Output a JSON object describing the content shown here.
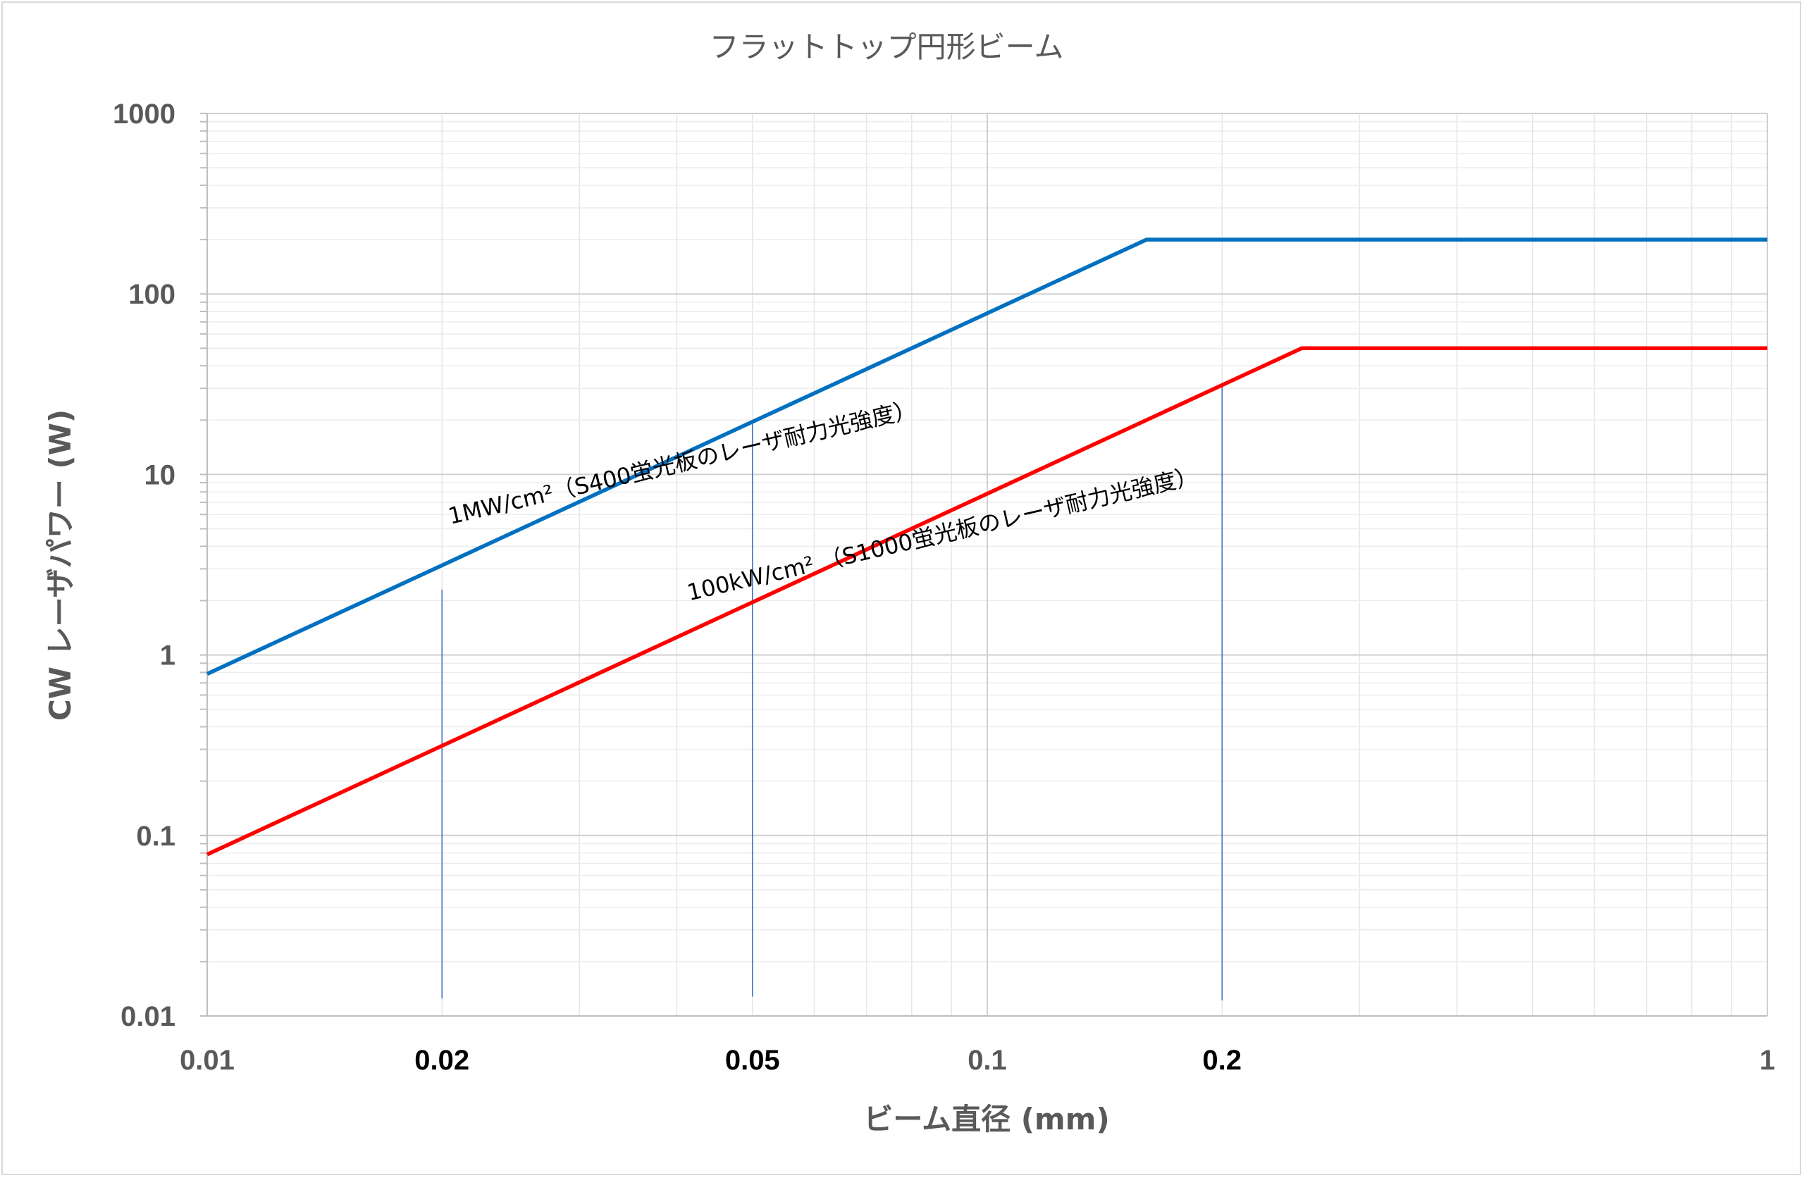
{
  "chart_data": {
    "type": "line",
    "title": "フラットトップ円形ビーム",
    "xlabel": "ビーム直径 (mm)",
    "ylabel": "CW レーザパワー (W)",
    "x_scale": "log",
    "y_scale": "log",
    "xlim": [
      0.01,
      1
    ],
    "ylim": [
      0.01,
      1000
    ],
    "x_ticks": [
      {
        "value": 0.01,
        "label": "0.01",
        "emphasis": false
      },
      {
        "value": 0.02,
        "label": "0.02",
        "emphasis": true
      },
      {
        "value": 0.05,
        "label": "0.05",
        "emphasis": true
      },
      {
        "value": 0.1,
        "label": "0.1",
        "emphasis": false
      },
      {
        "value": 0.2,
        "label": "0.2",
        "emphasis": true
      },
      {
        "value": 1,
        "label": "1",
        "emphasis": false
      }
    ],
    "y_ticks": [
      {
        "value": 1000,
        "label": "1000"
      },
      {
        "value": 100,
        "label": "100"
      },
      {
        "value": 10,
        "label": "10"
      },
      {
        "value": 1,
        "label": "1"
      },
      {
        "value": 0.1,
        "label": "0.1"
      },
      {
        "value": 0.01,
        "label": "0.01"
      }
    ],
    "grid": true,
    "series": [
      {
        "color": "#0070c0",
        "points": [
          [
            0.01,
            0.785
          ],
          [
            0.16,
            200
          ],
          [
            1,
            200
          ]
        ]
      },
      {
        "color": "#ff0000",
        "points": [
          [
            0.01,
            0.0785
          ],
          [
            0.253,
            50
          ],
          [
            1,
            50
          ]
        ]
      }
    ],
    "markers": [
      {
        "x": 0.02,
        "y_top": 2.3,
        "y_bottom": 0.0125,
        "color": "#4472c4"
      },
      {
        "x": 0.05,
        "y_top": 20,
        "y_bottom": 0.0128,
        "color": "#4472c4"
      },
      {
        "x": 0.2,
        "y_top": 31.4,
        "y_bottom": 0.0122,
        "color": "#4472c4"
      }
    ],
    "annotations": [
      {
        "text": "1MW/cm²（S400蛍光板のレーザ耐力光強度）",
        "x": 0.0205,
        "y": 5.3
      },
      {
        "text": "100kW/cm² （S1000蛍光板のレーザ耐力光強度）",
        "x": 0.0415,
        "y": 2.0
      }
    ]
  }
}
